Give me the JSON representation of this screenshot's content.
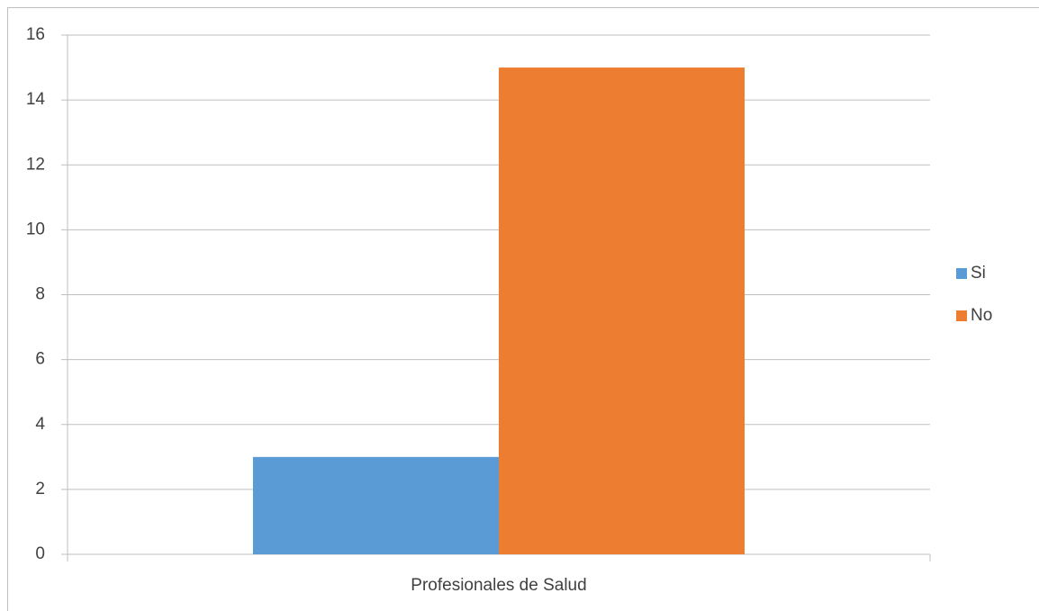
{
  "chart_data": {
    "type": "bar",
    "categories": [
      "Profesionales de Salud"
    ],
    "series": [
      {
        "name": "Si",
        "color": "#5b9bd5",
        "values": [
          3
        ]
      },
      {
        "name": "No",
        "color": "#ed7d31",
        "values": [
          15
        ]
      }
    ],
    "ylim": [
      0,
      16
    ],
    "yticks": [
      0,
      2,
      4,
      6,
      8,
      10,
      12,
      14,
      16
    ],
    "grid": true,
    "legend": "right"
  }
}
